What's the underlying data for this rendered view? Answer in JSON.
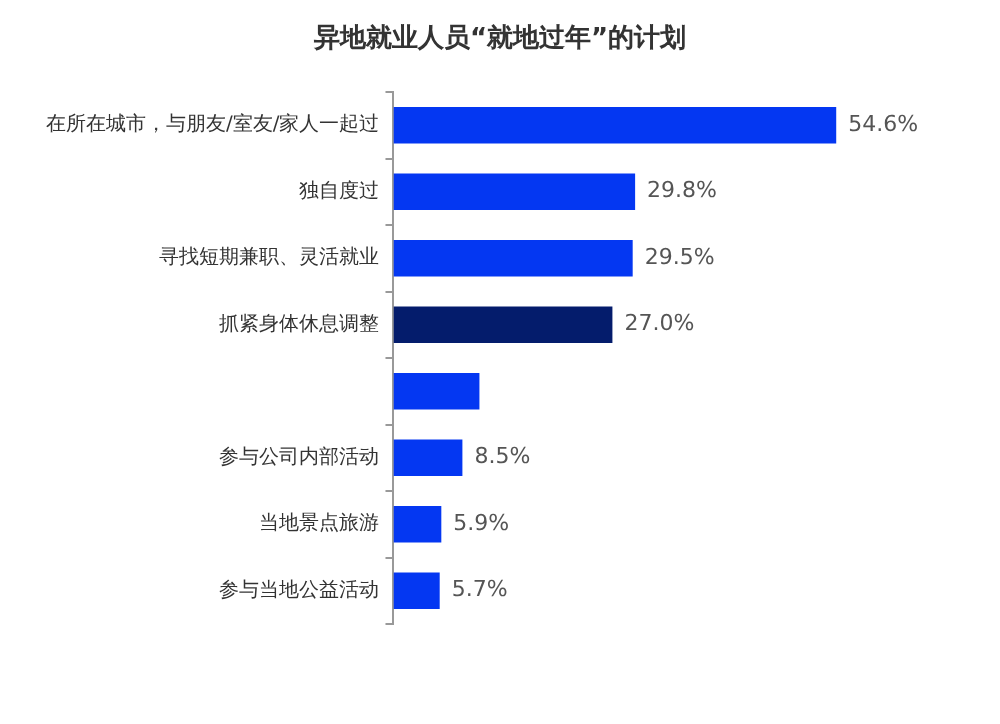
{
  "chart_data": {
    "type": "bar",
    "orientation": "horizontal",
    "title": "异地就业人员“就地过年”的计划",
    "categories": [
      "在所在城市，与朋友/室友/家人一起过",
      "独自度过",
      "寻找短期兼职、灵活就业",
      "抓紧身体休息调整",
      null,
      "参与公司内部活动",
      "当地景点旅游",
      "参与当地公益活动"
    ],
    "values": [
      54.6,
      29.8,
      29.5,
      27.0,
      10.6,
      8.5,
      5.9,
      5.7
    ],
    "value_labels": [
      "54.6%",
      "29.8%",
      "29.5%",
      "27.0%",
      null,
      "8.5%",
      "5.9%",
      "5.7%"
    ],
    "colors": [
      "#0437f2",
      "#0437f2",
      "#0437f2",
      "#041c6c",
      "#0437f2",
      "#0437f2",
      "#0437f2",
      "#0437f2"
    ],
    "grid": false,
    "legend": false
  }
}
